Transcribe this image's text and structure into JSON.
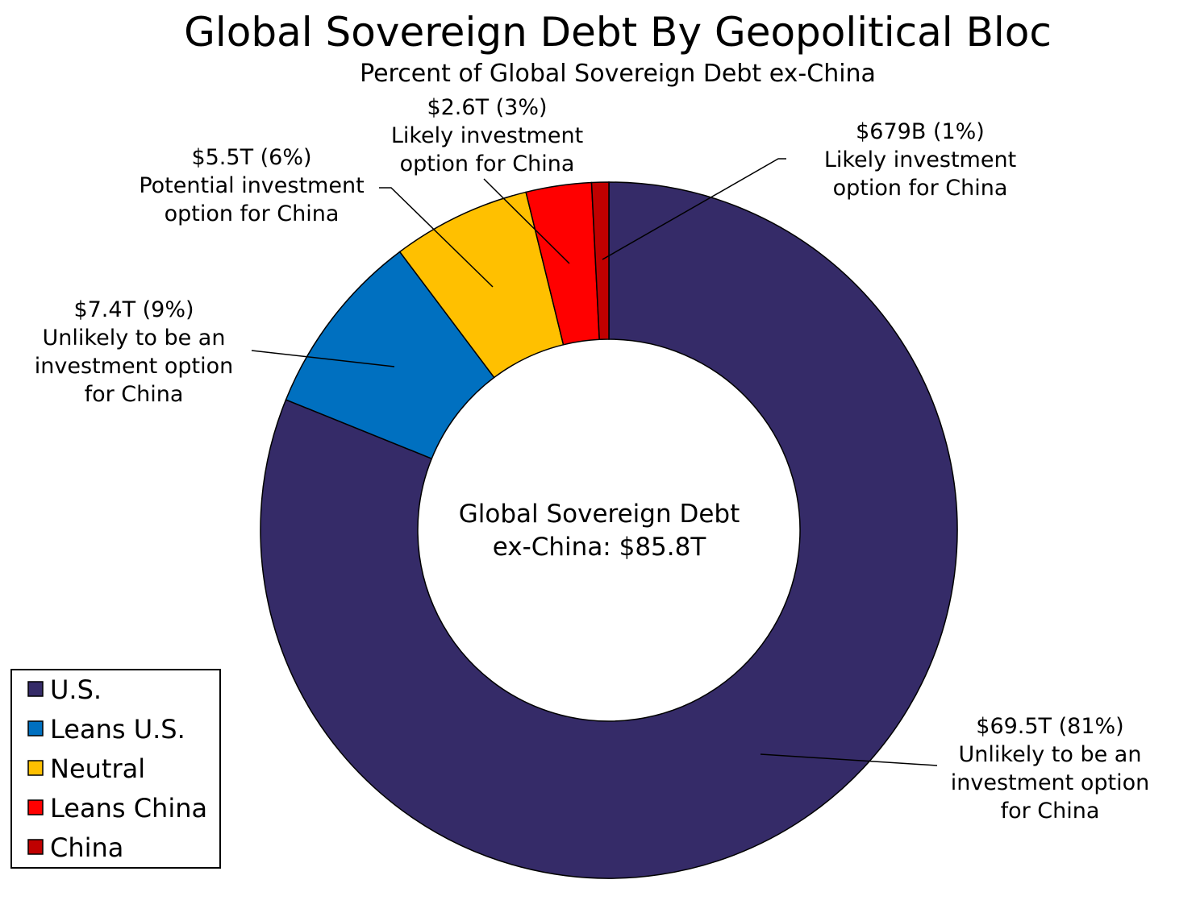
{
  "chart_data": {
    "type": "pie",
    "title": "Global Sovereign Debt By Geopolitical Bloc",
    "subtitle": "Percent of Global Sovereign Debt ex-China",
    "center_label": [
      "Global Sovereign Debt",
      "ex-China: $85.8T"
    ],
    "total": "$85.8T",
    "legend_position": "bottom-left",
    "series": [
      {
        "name": "U.S.",
        "value": 69.5,
        "percent": 81,
        "color": "#352b68",
        "label": [
          "$69.5T (81%)",
          "Unlikely to be an",
          "investment option",
          "for China"
        ]
      },
      {
        "name": "Leans U.S.",
        "value": 7.4,
        "percent": 9,
        "color": "#0070c0",
        "label": [
          "$7.4T (9%)",
          "Unlikely to be an",
          "investment option",
          "for China"
        ]
      },
      {
        "name": "Neutral",
        "value": 5.5,
        "percent": 6,
        "color": "#ffc000",
        "label": [
          "$5.5T (6%)",
          "Potential investment",
          "option for China"
        ]
      },
      {
        "name": "Leans China",
        "value": 2.6,
        "percent": 3,
        "color": "#ff0000",
        "label": [
          "$2.6T (3%)",
          "Likely investment",
          "option for China"
        ]
      },
      {
        "name": "China",
        "value": 0.679,
        "percent": 1,
        "color": "#c00000",
        "label": [
          "$679B (1%)",
          "Likely investment",
          "option for China"
        ]
      }
    ]
  }
}
